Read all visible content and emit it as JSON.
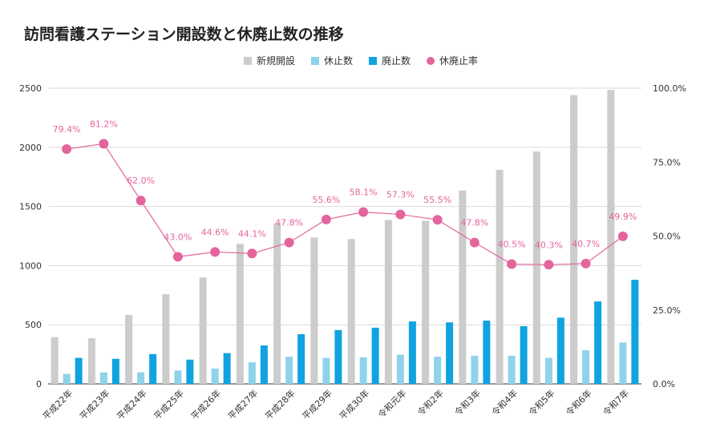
{
  "title": "訪問看護ステーション開設数と休廃止数の推移",
  "legend": {
    "items": [
      {
        "label": "新規開設",
        "color": "#cccccc",
        "shape": "square"
      },
      {
        "label": "休止数",
        "color": "#8fd3ea",
        "shape": "square"
      },
      {
        "label": "廃止数",
        "color": "#10a3e0",
        "shape": "square"
      },
      {
        "label": "休廃止率",
        "color": "#e4649c",
        "shape": "circle"
      }
    ]
  },
  "chart_data": {
    "type": "bar",
    "categories": [
      "平成22年",
      "平成23年",
      "平成24年",
      "平成25年",
      "平成26年",
      "平成27年",
      "平成28年",
      "平成29年",
      "平成30年",
      "令和元年",
      "令和2年",
      "令和3年",
      "令和4年",
      "令和5年",
      "令和6年",
      "令和7年"
    ],
    "series": [
      {
        "name": "新規開設",
        "color": "#cccccc",
        "axis": "left",
        "values": [
          395,
          386,
          583,
          758,
          900,
          1184,
          1355,
          1238,
          1225,
          1386,
          1378,
          1635,
          1810,
          1965,
          2441,
          2485
        ]
      },
      {
        "name": "休止数",
        "color": "#8fd3ea",
        "axis": "left",
        "values": [
          85,
          97,
          98,
          113,
          130,
          183,
          230,
          220,
          225,
          248,
          230,
          238,
          238,
          220,
          285,
          350
        ]
      },
      {
        "name": "廃止数",
        "color": "#10a3e0",
        "axis": "left",
        "values": [
          220,
          212,
          252,
          205,
          260,
          325,
          420,
          455,
          475,
          528,
          520,
          535,
          488,
          560,
          697,
          880
        ]
      }
    ],
    "line_series": {
      "name": "休廃止率",
      "color": "#e4649c",
      "axis": "right",
      "values": [
        79.4,
        81.2,
        62.0,
        43.0,
        44.6,
        44.1,
        47.8,
        55.6,
        58.1,
        57.3,
        55.5,
        47.8,
        40.5,
        40.3,
        40.7,
        49.9
      ],
      "labels": [
        "79.4%",
        "81.2%",
        "62.0%",
        "43.0%",
        "44.6%",
        "44.1%",
        "47.8%",
        "55.6%",
        "58.1%",
        "57.3%",
        "55.5%",
        "47.8%",
        "40.5%",
        "40.3%",
        "40.7%",
        "49.9%"
      ]
    },
    "left_axis": {
      "ylim": [
        0,
        2500
      ],
      "ticks": [
        "0",
        "500",
        "1000",
        "1500",
        "2000",
        "2500"
      ]
    },
    "right_axis": {
      "ylim": [
        0,
        100
      ],
      "ticks": [
        "0.0%",
        "25.0%",
        "50.0%",
        "75.0%",
        "100.0%"
      ]
    },
    "grid": true,
    "legend_position": "top-center"
  }
}
